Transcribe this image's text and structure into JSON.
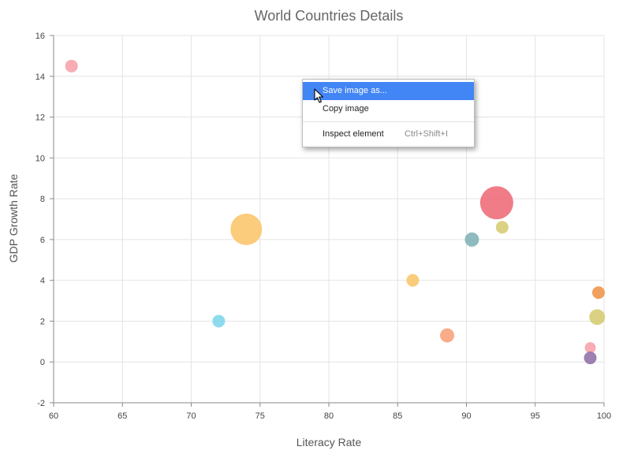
{
  "chart_data": {
    "type": "scatter",
    "title": "World Countries Details",
    "xlabel": "Literacy Rate",
    "ylabel": "GDP Growth Rate",
    "xlim": [
      60,
      100
    ],
    "ylim": [
      -2,
      16
    ],
    "xticks": [
      60,
      65,
      70,
      75,
      80,
      85,
      90,
      95,
      100
    ],
    "yticks": [
      -2,
      0,
      2,
      4,
      6,
      8,
      10,
      12,
      14,
      16
    ],
    "grid": true,
    "points": [
      {
        "x": 61.3,
        "y": 14.5,
        "size": 8,
        "color": "#f7a1a8"
      },
      {
        "x": 72.0,
        "y": 2.0,
        "size": 8,
        "color": "#7ed6ea"
      },
      {
        "x": 74.0,
        "y": 6.5,
        "size": 20,
        "color": "#f9c56a"
      },
      {
        "x": 86.1,
        "y": 4.0,
        "size": 8,
        "color": "#f9c56a"
      },
      {
        "x": 88.6,
        "y": 1.3,
        "size": 9,
        "color": "#f9a07a"
      },
      {
        "x": 90.4,
        "y": 6.0,
        "size": 9,
        "color": "#7fb2b5"
      },
      {
        "x": 92.2,
        "y": 7.8,
        "size": 21,
        "color": "#ee6a76"
      },
      {
        "x": 92.6,
        "y": 6.6,
        "size": 8,
        "color": "#d5cc71"
      },
      {
        "x": 99.0,
        "y": 0.7,
        "size": 7,
        "color": "#f7a1a8"
      },
      {
        "x": 99.0,
        "y": 0.2,
        "size": 8,
        "color": "#8e6fa6"
      },
      {
        "x": 99.5,
        "y": 2.2,
        "size": 10,
        "color": "#d5cc71"
      },
      {
        "x": 99.6,
        "y": 3.4,
        "size": 8,
        "color": "#ee9448"
      }
    ]
  },
  "context_menu": {
    "items": [
      {
        "label": "Save image as...",
        "shortcut": "",
        "active": true
      },
      {
        "label": "Copy image",
        "shortcut": "",
        "active": false
      },
      {
        "label": "Inspect element",
        "shortcut": "Ctrl+Shift+I",
        "active": false
      }
    ]
  },
  "icons": {
    "cursor": "arrow-cursor-icon"
  }
}
